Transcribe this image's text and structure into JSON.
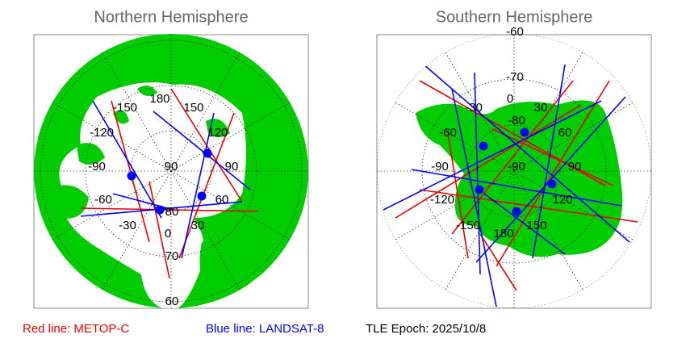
{
  "north": {
    "title": "Northern Hemisphere",
    "labels": [
      "180",
      "150",
      "-150",
      "120",
      "-120",
      "90",
      "-90",
      "90",
      "60",
      "-60",
      "30",
      "-30",
      "0",
      "80",
      "70",
      "60"
    ]
  },
  "south": {
    "title": "Southern Hemisphere",
    "labels": [
      "-60",
      "-70",
      "0",
      "-30",
      "30",
      "-80",
      "-60",
      "60",
      "-90",
      "-90",
      "90",
      "-120",
      "120",
      "-150",
      "180",
      "150"
    ]
  },
  "legend": {
    "red": "Red line: METOP-C",
    "blue": "Blue line: LANDSAT-8",
    "epoch": "TLE Epoch: 2025/10/8"
  }
}
